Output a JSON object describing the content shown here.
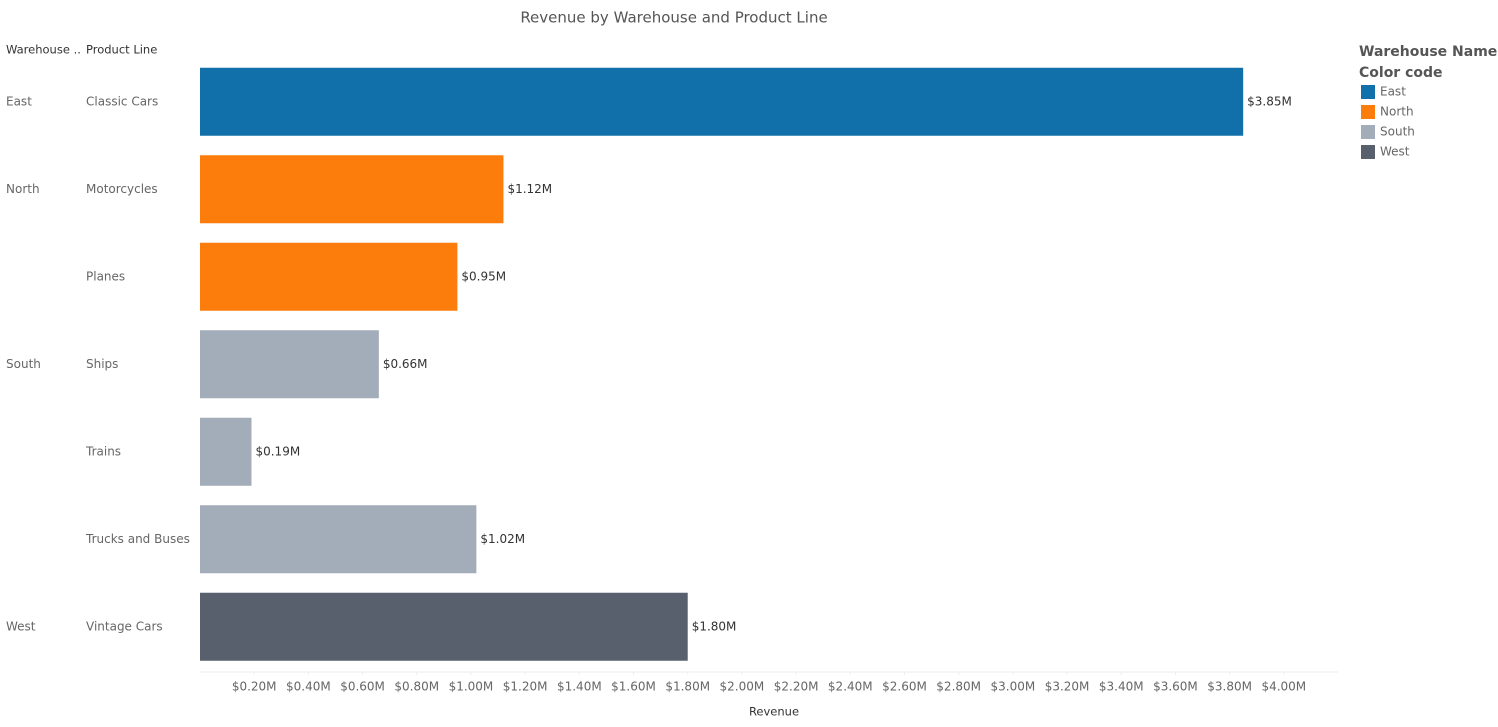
{
  "chart_data": {
    "type": "bar",
    "orientation": "horizontal",
    "title": "Revenue by Warehouse and Product Line",
    "row_headers": [
      "Warehouse ..",
      "Product Line"
    ],
    "x_label": "Revenue",
    "legend_title": "Warehouse Name",
    "legend_subtitle": "Color code",
    "legend_position": "right",
    "categories": [
      "Classic Cars",
      "Motorcycles",
      "Planes",
      "Ships",
      "Trains",
      "Trucks and Buses",
      "Vintage Cars"
    ],
    "series": [
      {
        "name": "East",
        "color": "#1170aa",
        "values": [
          3850000,
          null,
          null,
          null,
          null,
          null,
          null
        ],
        "value_labels": [
          "$3.85M",
          null,
          null,
          null,
          null,
          null,
          null
        ]
      },
      {
        "name": "North",
        "color": "#fc7d0b",
        "values": [
          null,
          1120000,
          950000,
          null,
          null,
          null,
          null
        ],
        "value_labels": [
          null,
          "$1.12M",
          "$0.95M",
          null,
          null,
          null,
          null
        ]
      },
      {
        "name": "South",
        "color": "#a3acb9",
        "values": [
          null,
          null,
          null,
          660000,
          190000,
          1020000,
          null
        ],
        "value_labels": [
          null,
          null,
          null,
          "$0.66M",
          "$0.19M",
          "$1.02M",
          null
        ]
      },
      {
        "name": "West",
        "color": "#57606c",
        "values": [
          null,
          null,
          null,
          null,
          null,
          null,
          1800000
        ],
        "value_labels": [
          null,
          null,
          null,
          null,
          null,
          null,
          "$1.80M"
        ]
      }
    ],
    "xlim": [
      0,
      4200000
    ],
    "xticks": [
      {
        "value": 200000,
        "label": "$0.20M"
      },
      {
        "value": 400000,
        "label": "$0.40M"
      },
      {
        "value": 600000,
        "label": "$0.60M"
      },
      {
        "value": 800000,
        "label": "$0.80M"
      },
      {
        "value": 1000000,
        "label": "$1.00M"
      },
      {
        "value": 1200000,
        "label": "$1.20M"
      },
      {
        "value": 1400000,
        "label": "$1.40M"
      },
      {
        "value": 1600000,
        "label": "$1.60M"
      },
      {
        "value": 1800000,
        "label": "$1.80M"
      },
      {
        "value": 2000000,
        "label": "$2.00M"
      },
      {
        "value": 2200000,
        "label": "$2.20M"
      },
      {
        "value": 2400000,
        "label": "$2.40M"
      },
      {
        "value": 2600000,
        "label": "$2.60M"
      },
      {
        "value": 2800000,
        "label": "$2.80M"
      },
      {
        "value": 3000000,
        "label": "$3.00M"
      },
      {
        "value": 3200000,
        "label": "$3.20M"
      },
      {
        "value": 3400000,
        "label": "$3.40M"
      },
      {
        "value": 3600000,
        "label": "$3.60M"
      },
      {
        "value": 3800000,
        "label": "$3.80M"
      },
      {
        "value": 4000000,
        "label": "$4.00M"
      }
    ],
    "grid": false
  }
}
